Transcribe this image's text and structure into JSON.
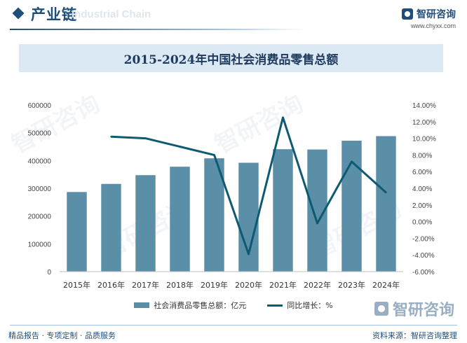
{
  "header": {
    "section_title": "产业链",
    "section_subtitle": "Industrial Chain",
    "brand_name": "智研咨询",
    "brand_url": "www.chyxx.com"
  },
  "chart_data": {
    "type": "bar",
    "title": "2015-2024年中国社会消费品零售总额",
    "categories": [
      "2015年",
      "2016年",
      "2017年",
      "2018年",
      "2019年",
      "2020年",
      "2021年",
      "2022年",
      "2023年",
      "2024年"
    ],
    "series": [
      {
        "name": "社会消费品零售总额：亿元",
        "type": "bar",
        "axis": "left",
        "values": [
          286588,
          315806,
          347327,
          377783,
          408017,
          391981,
          440823,
          439733,
          471495,
          487895
        ],
        "color": "#5b8fa8"
      },
      {
        "name": "同比增长：%",
        "type": "line",
        "axis": "right",
        "values": [
          null,
          10.2,
          10.0,
          9.0,
          8.0,
          -3.9,
          12.5,
          -0.2,
          7.2,
          3.5
        ],
        "color": "#0e5a72"
      }
    ],
    "y_left": {
      "min": 0,
      "max": 600000,
      "ticks": [
        0,
        100000,
        200000,
        300000,
        400000,
        500000,
        600000
      ],
      "tick_labels": [
        "0",
        "100000",
        "200000",
        "300000",
        "400000",
        "500000",
        "600000"
      ]
    },
    "y_right": {
      "min": -6,
      "max": 14,
      "ticks": [
        -6,
        -4,
        -2,
        0,
        2,
        4,
        6,
        8,
        10,
        12,
        14
      ],
      "tick_labels": [
        "-6.00%",
        "-4.00%",
        "-2.00%",
        "0.00%",
        "2.00%",
        "4.00%",
        "6.00%",
        "8.00%",
        "10.00%",
        "12.00%",
        "14.00%"
      ]
    },
    "grid": false,
    "legend_position": "bottom"
  },
  "footer": {
    "left_text": "精品报告 · 专项定制 · 品质服务",
    "right_text": "资料来源：智研咨询整理"
  }
}
